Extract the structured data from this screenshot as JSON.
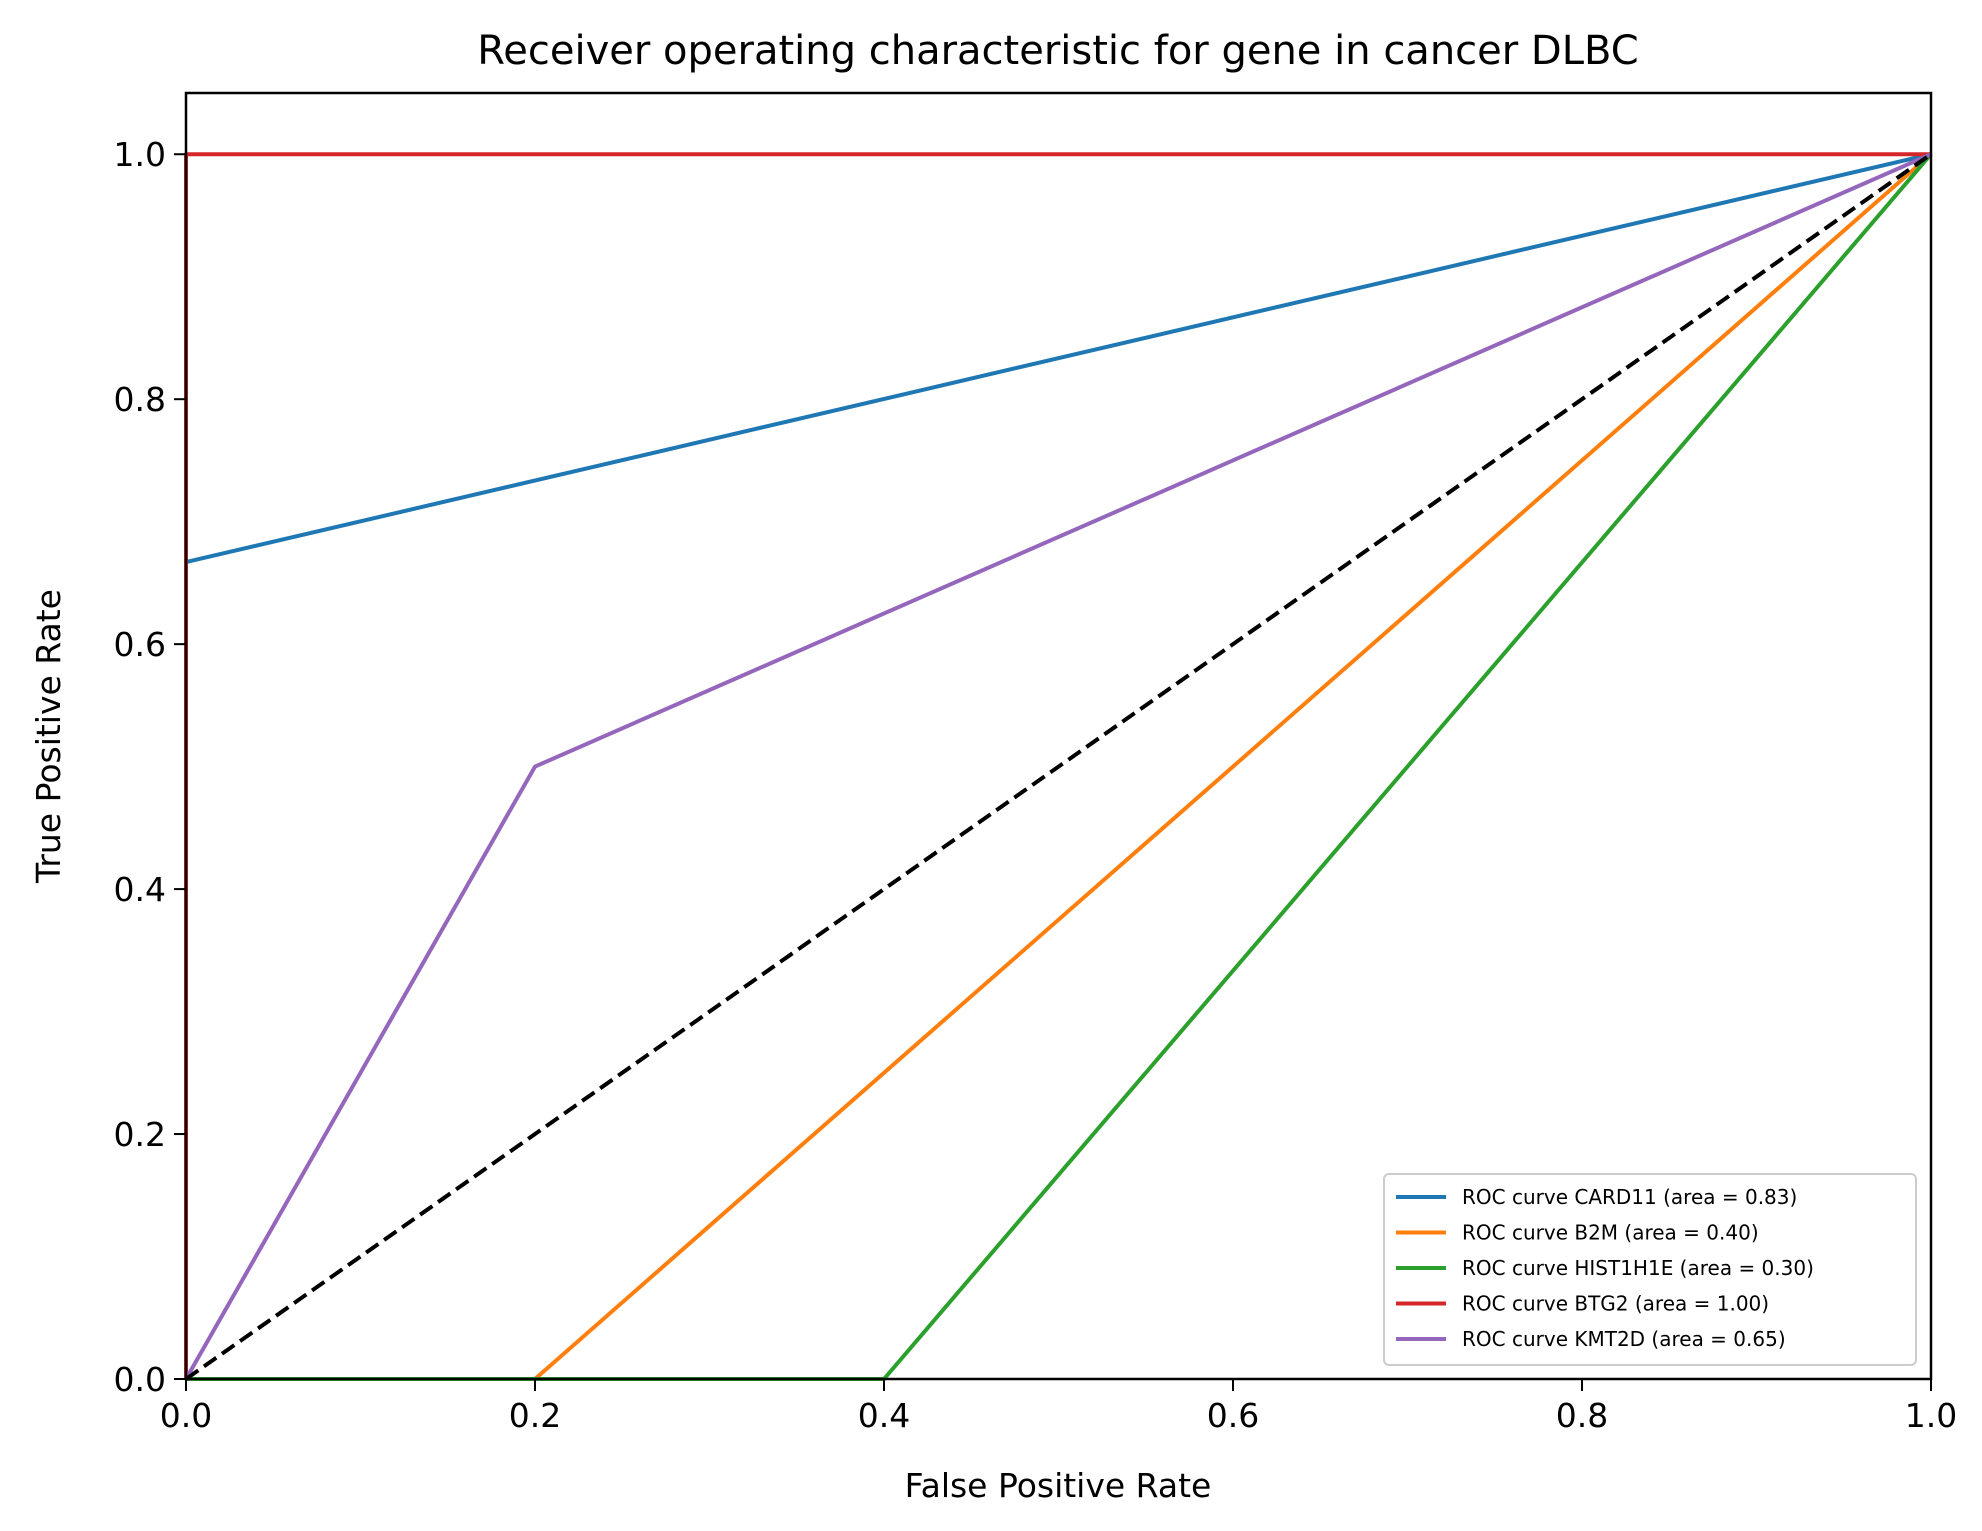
{
  "chart_data": {
    "type": "line",
    "title": "Receiver operating characteristic for gene in cancer DLBC",
    "xlabel": "False Positive Rate",
    "ylabel": "True Positive Rate",
    "xlim": [
      0.0,
      1.0
    ],
    "ylim": [
      0.0,
      1.05
    ],
    "x_ticks": [
      "0.0",
      "0.2",
      "0.4",
      "0.6",
      "0.8",
      "1.0"
    ],
    "y_ticks": [
      "0.0",
      "0.2",
      "0.4",
      "0.6",
      "0.8",
      "1.0"
    ],
    "grid": false,
    "legend_position": "lower-right",
    "series": [
      {
        "name": "ROC curve CARD11 (area = 0.83)",
        "color": "#1f77b4",
        "x": [
          0.0,
          0.0,
          1.0
        ],
        "y": [
          0.0,
          0.667,
          1.0
        ]
      },
      {
        "name": "ROC curve B2M (area = 0.40)",
        "color": "#ff7f0e",
        "x": [
          0.0,
          0.2,
          1.0
        ],
        "y": [
          0.0,
          0.0,
          1.0
        ]
      },
      {
        "name": "ROC curve HIST1H1E (area = 0.30)",
        "color": "#2ca02c",
        "x": [
          0.0,
          0.4,
          1.0
        ],
        "y": [
          0.0,
          0.0,
          1.0
        ]
      },
      {
        "name": "ROC curve BTG2 (area = 1.00)",
        "color": "#d62728",
        "x": [
          0.0,
          0.0,
          1.0
        ],
        "y": [
          0.0,
          1.0,
          1.0
        ]
      },
      {
        "name": "ROC curve KMT2D (area = 0.65)",
        "color": "#9467bd",
        "x": [
          0.0,
          0.2,
          1.0
        ],
        "y": [
          0.0,
          0.5,
          1.0
        ]
      }
    ],
    "reference_line": {
      "x": [
        0.0,
        1.0
      ],
      "y": [
        0.0,
        1.0
      ],
      "color": "#000000",
      "style": "dashed"
    }
  }
}
